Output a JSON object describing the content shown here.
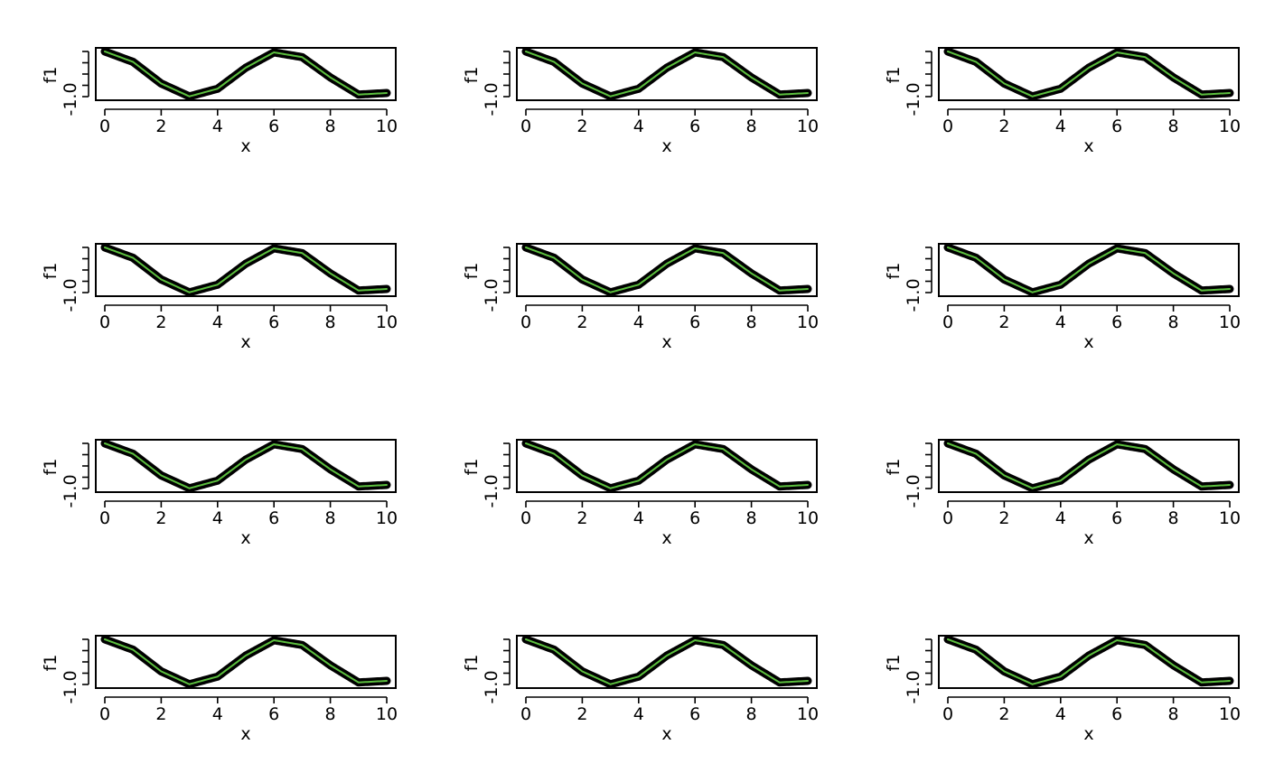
{
  "colors": {
    "points": "#000000",
    "fit": "#5cbf3f",
    "background": "#ffffff"
  },
  "chart_data": [
    {
      "type": "line",
      "panel": 1,
      "xlabel": "x",
      "ylabel": "f1",
      "xticks": [
        0,
        2,
        4,
        6,
        8,
        10
      ],
      "yticklabels": [
        "-1.0"
      ],
      "xlim": [
        0,
        10
      ],
      "ylim": [
        -1,
        1
      ],
      "series": [
        {
          "x": [
            0,
            1,
            2,
            3,
            4,
            5,
            6,
            7,
            8,
            9,
            10
          ],
          "values": [
            1.0,
            0.54,
            -0.42,
            -0.99,
            -0.65,
            0.28,
            0.96,
            0.75,
            -0.15,
            -0.91,
            -0.84
          ]
        }
      ]
    },
    {
      "type": "line",
      "panel": 2,
      "xlabel": "x",
      "ylabel": "f1",
      "xticks": [
        0,
        2,
        4,
        6,
        8,
        10
      ],
      "yticklabels": [
        "-1.0"
      ],
      "xlim": [
        0,
        10
      ],
      "ylim": [
        -1,
        1
      ],
      "series": [
        {
          "x": [
            0,
            1,
            2,
            3,
            4,
            5,
            6,
            7,
            8,
            9,
            10
          ],
          "values": [
            1.0,
            0.54,
            -0.42,
            -0.99,
            -0.65,
            0.28,
            0.96,
            0.75,
            -0.15,
            -0.91,
            -0.84
          ]
        }
      ]
    },
    {
      "type": "line",
      "panel": 3,
      "xlabel": "x",
      "ylabel": "f1",
      "xticks": [
        0,
        2,
        4,
        6,
        8,
        10
      ],
      "yticklabels": [
        "-1.0"
      ],
      "xlim": [
        0,
        10
      ],
      "ylim": [
        -1,
        1
      ],
      "series": [
        {
          "x": [
            0,
            1,
            2,
            3,
            4,
            5,
            6,
            7,
            8,
            9,
            10
          ],
          "values": [
            1.0,
            0.54,
            -0.42,
            -0.99,
            -0.65,
            0.28,
            0.96,
            0.75,
            -0.15,
            -0.91,
            -0.84
          ]
        }
      ]
    },
    {
      "type": "line",
      "panel": 4,
      "xlabel": "x",
      "ylabel": "f1",
      "xticks": [
        0,
        2,
        4,
        6,
        8,
        10
      ],
      "yticklabels": [
        "-1.0"
      ],
      "xlim": [
        0,
        10
      ],
      "ylim": [
        -1,
        1
      ],
      "series": [
        {
          "x": [
            0,
            1,
            2,
            3,
            4,
            5,
            6,
            7,
            8,
            9,
            10
          ],
          "values": [
            1.0,
            0.54,
            -0.42,
            -0.99,
            -0.65,
            0.28,
            0.96,
            0.75,
            -0.15,
            -0.91,
            -0.84
          ]
        }
      ]
    },
    {
      "type": "line",
      "panel": 5,
      "xlabel": "x",
      "ylabel": "f1",
      "xticks": [
        0,
        2,
        4,
        6,
        8,
        10
      ],
      "yticklabels": [
        "-1.0"
      ],
      "xlim": [
        0,
        10
      ],
      "ylim": [
        -1,
        1
      ],
      "series": [
        {
          "x": [
            0,
            1,
            2,
            3,
            4,
            5,
            6,
            7,
            8,
            9,
            10
          ],
          "values": [
            1.0,
            0.54,
            -0.42,
            -0.99,
            -0.65,
            0.28,
            0.96,
            0.75,
            -0.15,
            -0.91,
            -0.84
          ]
        }
      ]
    },
    {
      "type": "line",
      "panel": 6,
      "xlabel": "x",
      "ylabel": "f1",
      "xticks": [
        0,
        2,
        4,
        6,
        8,
        10
      ],
      "yticklabels": [
        "-1.0"
      ],
      "xlim": [
        0,
        10
      ],
      "ylim": [
        -1,
        1
      ],
      "series": [
        {
          "x": [
            0,
            1,
            2,
            3,
            4,
            5,
            6,
            7,
            8,
            9,
            10
          ],
          "values": [
            1.0,
            0.54,
            -0.42,
            -0.99,
            -0.65,
            0.28,
            0.96,
            0.75,
            -0.15,
            -0.91,
            -0.84
          ]
        }
      ]
    },
    {
      "type": "line",
      "panel": 7,
      "xlabel": "x",
      "ylabel": "f1",
      "xticks": [
        0,
        2,
        4,
        6,
        8,
        10
      ],
      "yticklabels": [
        "-1.0"
      ],
      "xlim": [
        0,
        10
      ],
      "ylim": [
        -1,
        1
      ],
      "series": [
        {
          "x": [
            0,
            1,
            2,
            3,
            4,
            5,
            6,
            7,
            8,
            9,
            10
          ],
          "values": [
            1.0,
            0.54,
            -0.42,
            -0.99,
            -0.65,
            0.28,
            0.96,
            0.75,
            -0.15,
            -0.91,
            -0.84
          ]
        }
      ]
    },
    {
      "type": "line",
      "panel": 8,
      "xlabel": "x",
      "ylabel": "f1",
      "xticks": [
        0,
        2,
        4,
        6,
        8,
        10
      ],
      "yticklabels": [
        "-1.0"
      ],
      "xlim": [
        0,
        10
      ],
      "ylim": [
        -1,
        1
      ],
      "series": [
        {
          "x": [
            0,
            1,
            2,
            3,
            4,
            5,
            6,
            7,
            8,
            9,
            10
          ],
          "values": [
            1.0,
            0.54,
            -0.42,
            -0.99,
            -0.65,
            0.28,
            0.96,
            0.75,
            -0.15,
            -0.91,
            -0.84
          ]
        }
      ]
    },
    {
      "type": "line",
      "panel": 9,
      "xlabel": "x",
      "ylabel": "f1",
      "xticks": [
        0,
        2,
        4,
        6,
        8,
        10
      ],
      "yticklabels": [
        "-1.0"
      ],
      "xlim": [
        0,
        10
      ],
      "ylim": [
        -1,
        1
      ],
      "series": [
        {
          "x": [
            0,
            1,
            2,
            3,
            4,
            5,
            6,
            7,
            8,
            9,
            10
          ],
          "values": [
            1.0,
            0.54,
            -0.42,
            -0.99,
            -0.65,
            0.28,
            0.96,
            0.75,
            -0.15,
            -0.91,
            -0.84
          ]
        }
      ]
    },
    {
      "type": "line",
      "panel": 10,
      "xlabel": "x",
      "ylabel": "f1",
      "xticks": [
        0,
        2,
        4,
        6,
        8,
        10
      ],
      "yticklabels": [
        "-1.0"
      ],
      "xlim": [
        0,
        10
      ],
      "ylim": [
        -1,
        1
      ],
      "series": [
        {
          "x": [
            0,
            1,
            2,
            3,
            4,
            5,
            6,
            7,
            8,
            9,
            10
          ],
          "values": [
            1.0,
            0.54,
            -0.42,
            -0.99,
            -0.65,
            0.28,
            0.96,
            0.75,
            -0.15,
            -0.91,
            -0.84
          ]
        }
      ]
    },
    {
      "type": "line",
      "panel": 11,
      "xlabel": "x",
      "ylabel": "f1",
      "xticks": [
        0,
        2,
        4,
        6,
        8,
        10
      ],
      "yticklabels": [
        "-1.0"
      ],
      "xlim": [
        0,
        10
      ],
      "ylim": [
        -1,
        1
      ],
      "series": [
        {
          "x": [
            0,
            1,
            2,
            3,
            4,
            5,
            6,
            7,
            8,
            9,
            10
          ],
          "values": [
            1.0,
            0.54,
            -0.42,
            -0.99,
            -0.65,
            0.28,
            0.96,
            0.75,
            -0.15,
            -0.91,
            -0.84
          ]
        }
      ]
    },
    {
      "type": "line",
      "panel": 12,
      "xlabel": "x",
      "ylabel": "f1",
      "xticks": [
        0,
        2,
        4,
        6,
        8,
        10
      ],
      "yticklabels": [
        "-1.0"
      ],
      "xlim": [
        0,
        10
      ],
      "ylim": [
        -1,
        1
      ],
      "series": [
        {
          "x": [
            0,
            1,
            2,
            3,
            4,
            5,
            6,
            7,
            8,
            9,
            10
          ],
          "values": [
            1.0,
            0.54,
            -0.42,
            -0.99,
            -0.65,
            0.28,
            0.96,
            0.75,
            -0.15,
            -0.91,
            -0.84
          ]
        }
      ]
    }
  ]
}
